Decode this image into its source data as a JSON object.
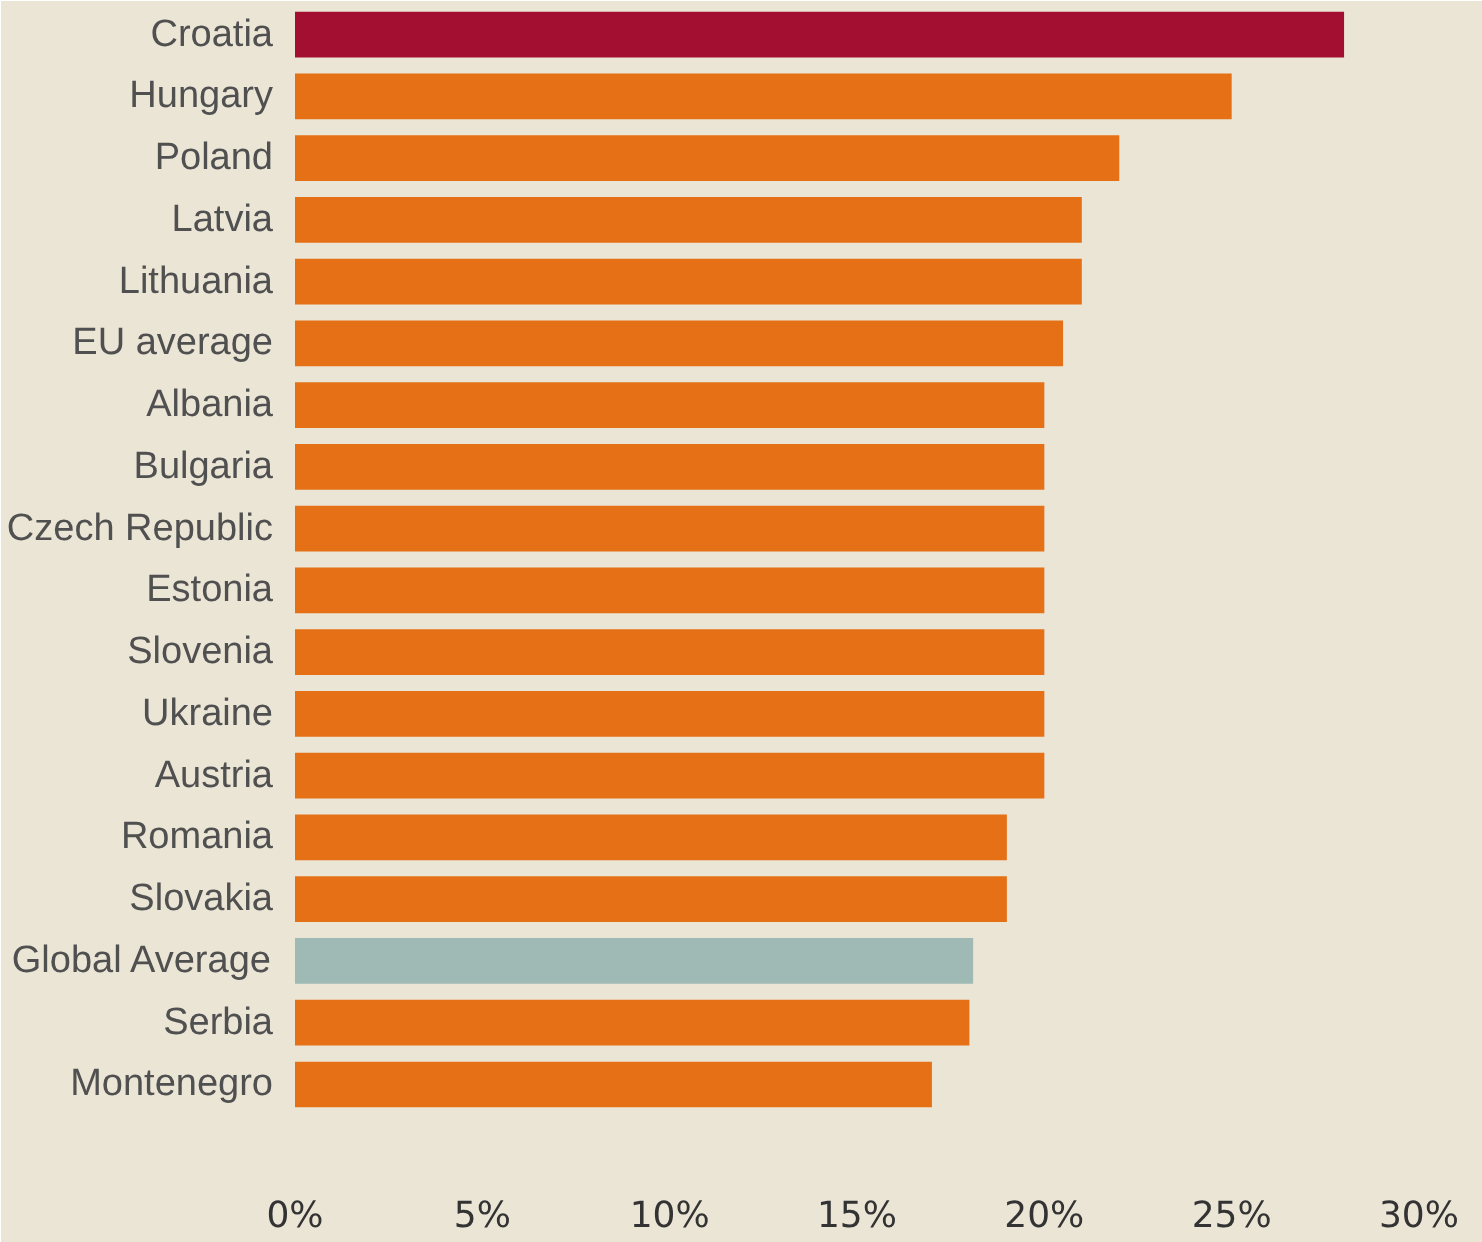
{
  "chart_data": {
    "type": "bar",
    "orientation": "horizontal",
    "categories": [
      "Croatia",
      "Hungary",
      "Poland",
      "Latvia",
      "Lithuania",
      "EU average",
      "Albania",
      "Bulgaria",
      "Czech Republic",
      "Estonia",
      "Slovenia",
      "Ukraine",
      "Austria",
      "Romania",
      "Slovakia",
      "Global Average",
      "Serbia",
      "Montenegro"
    ],
    "values": [
      28,
      25,
      22,
      21,
      21,
      20.5,
      20,
      20,
      20,
      20,
      20,
      20,
      20,
      19,
      19,
      18.1,
      18,
      17
    ],
    "colors": [
      "#a30f30",
      "#e57015",
      "#e57015",
      "#e57015",
      "#e57015",
      "#e57015",
      "#e57015",
      "#e57015",
      "#e57015",
      "#e57015",
      "#e57015",
      "#e57015",
      "#e57015",
      "#e57015",
      "#e57015",
      "#9fbab5",
      "#e57015",
      "#e57015"
    ],
    "xlim": [
      0,
      30
    ],
    "xticks": [
      {
        "value": 0,
        "label": "0%"
      },
      {
        "value": 5,
        "label": "5%"
      },
      {
        "value": 10,
        "label": "10%"
      },
      {
        "value": 15,
        "label": "15%"
      },
      {
        "value": 20,
        "label": "20%"
      },
      {
        "value": 25,
        "label": "25%"
      },
      {
        "value": 30,
        "label": "30%"
      }
    ],
    "grid": false
  }
}
